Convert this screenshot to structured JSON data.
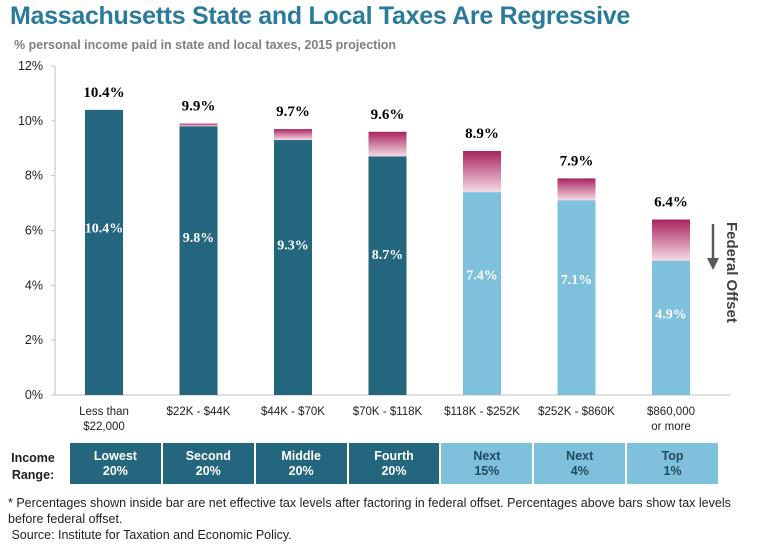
{
  "title": "Massachusetts State and Local Taxes Are Regressive",
  "subtitle": "% personal income paid in state and local taxes, 2015 projection",
  "chart_data": {
    "type": "bar",
    "stacked": true,
    "categories": [
      "Less than\n$22,000",
      "$22K - $44K",
      "$44K - $70K",
      "$70K - $118K",
      "$118K - $252K",
      "$252K - $860K",
      "$860,000\nor more"
    ],
    "series": [
      {
        "values": [
          10.4,
          9.8,
          9.3,
          8.7,
          7.4,
          7.1,
          4.9
        ]
      },
      {
        "values": [
          0.0,
          0.1,
          0.4,
          0.9,
          1.5,
          0.8,
          1.5
        ]
      }
    ],
    "totals": [
      10.4,
      9.9,
      9.7,
      9.6,
      8.9,
      7.9,
      6.4
    ],
    "inside_labels": [
      "10.4%",
      "9.8%",
      "9.3%",
      "8.7%",
      "7.4%",
      "7.1%",
      "4.9%"
    ],
    "top_labels": [
      "10.4%",
      "9.9%",
      "9.7%",
      "9.6%",
      "8.9%",
      "7.9%",
      "6.4%"
    ],
    "y_ticks": [
      "0%",
      "2%",
      "4%",
      "6%",
      "8%",
      "10%",
      "12%"
    ],
    "ylim": [
      0,
      12
    ],
    "annotation": "Federal Offset",
    "colors": {
      "dark_bar": "#25667f",
      "light_bar": "#7fc0dc",
      "offset_top": "#a8245e",
      "offset_bottom": "#f6dbe7"
    }
  },
  "income_range": {
    "label": "Income\nRange:",
    "cells": [
      {
        "name": "Lowest",
        "share": "20%",
        "tone": "dark"
      },
      {
        "name": "Second",
        "share": "20%",
        "tone": "dark"
      },
      {
        "name": "Middle",
        "share": "20%",
        "tone": "dark"
      },
      {
        "name": "Fourth",
        "share": "20%",
        "tone": "dark"
      },
      {
        "name": "Next",
        "share": "15%",
        "tone": "light"
      },
      {
        "name": "Next",
        "share": "4%",
        "tone": "light"
      },
      {
        "name": "Top",
        "share": "1%",
        "tone": "light"
      }
    ]
  },
  "footnote": {
    "line1": "* Percentages shown inside bar are net effective tax levels after factoring in federal offset. Percentages above bars show  tax levels before federal offset.",
    "line2": " Source: Institute for Taxation and Economic Policy."
  }
}
